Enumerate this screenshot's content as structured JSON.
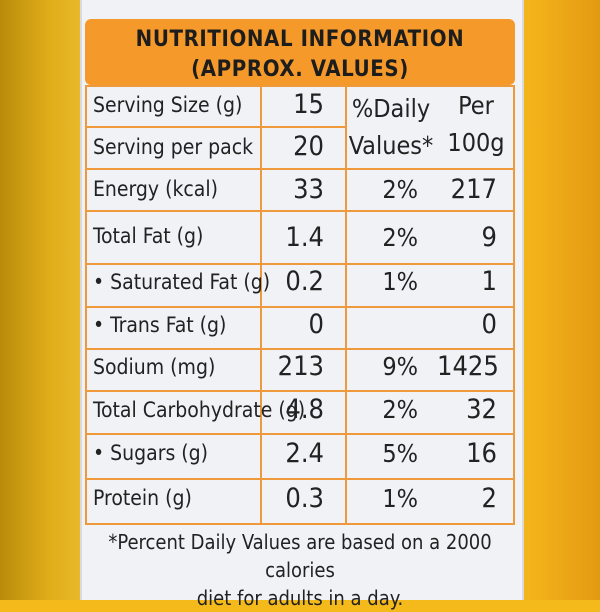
{
  "panel": {
    "title": "NUTRITIONAL INFORMATION",
    "subtitle": "(APPROX. VALUES)"
  },
  "serving": {
    "size_label": "Serving Size (g)",
    "size_value": "15",
    "per_pack_label": "Serving per pack",
    "per_pack_value": "20"
  },
  "columns": {
    "daily_line1": "%Daily",
    "daily_line2": "Values*",
    "per_line1": "Per",
    "per_line2": "100g"
  },
  "nutrients": [
    {
      "label": "Energy (kcal)",
      "value": "33",
      "pct": "2%",
      "per100": "217"
    },
    {
      "label": "Total Fat (g)",
      "value": "1.4",
      "pct": "2%",
      "per100": "9"
    },
    {
      "label": "• Saturated Fat (g)",
      "value": "0.2",
      "pct": "1%",
      "per100": "1"
    },
    {
      "label": "• Trans Fat (g)",
      "value": "0",
      "pct": "",
      "per100": "0"
    },
    {
      "label": "Sodium (mg)",
      "value": "213",
      "pct": "9%",
      "per100": "1425"
    },
    {
      "label": "Total Carbohydrate (g)",
      "value": "4.8",
      "pct": "2%",
      "per100": "32"
    },
    {
      "label": "• Sugars (g)",
      "value": "2.4",
      "pct": "5%",
      "per100": "16"
    },
    {
      "label": "Protein (g)",
      "value": "0.3",
      "pct": "1%",
      "per100": "2"
    }
  ],
  "footer": {
    "line1": "*Percent Daily Values are based on a 2000 calories",
    "line2": "diet for adults in a day."
  },
  "colors": {
    "header_bg": "#f59a2a",
    "grid_lines": "#ee9a3c",
    "label_bg": "#f1f2f6",
    "package_yellow": "#f4ba1c"
  }
}
